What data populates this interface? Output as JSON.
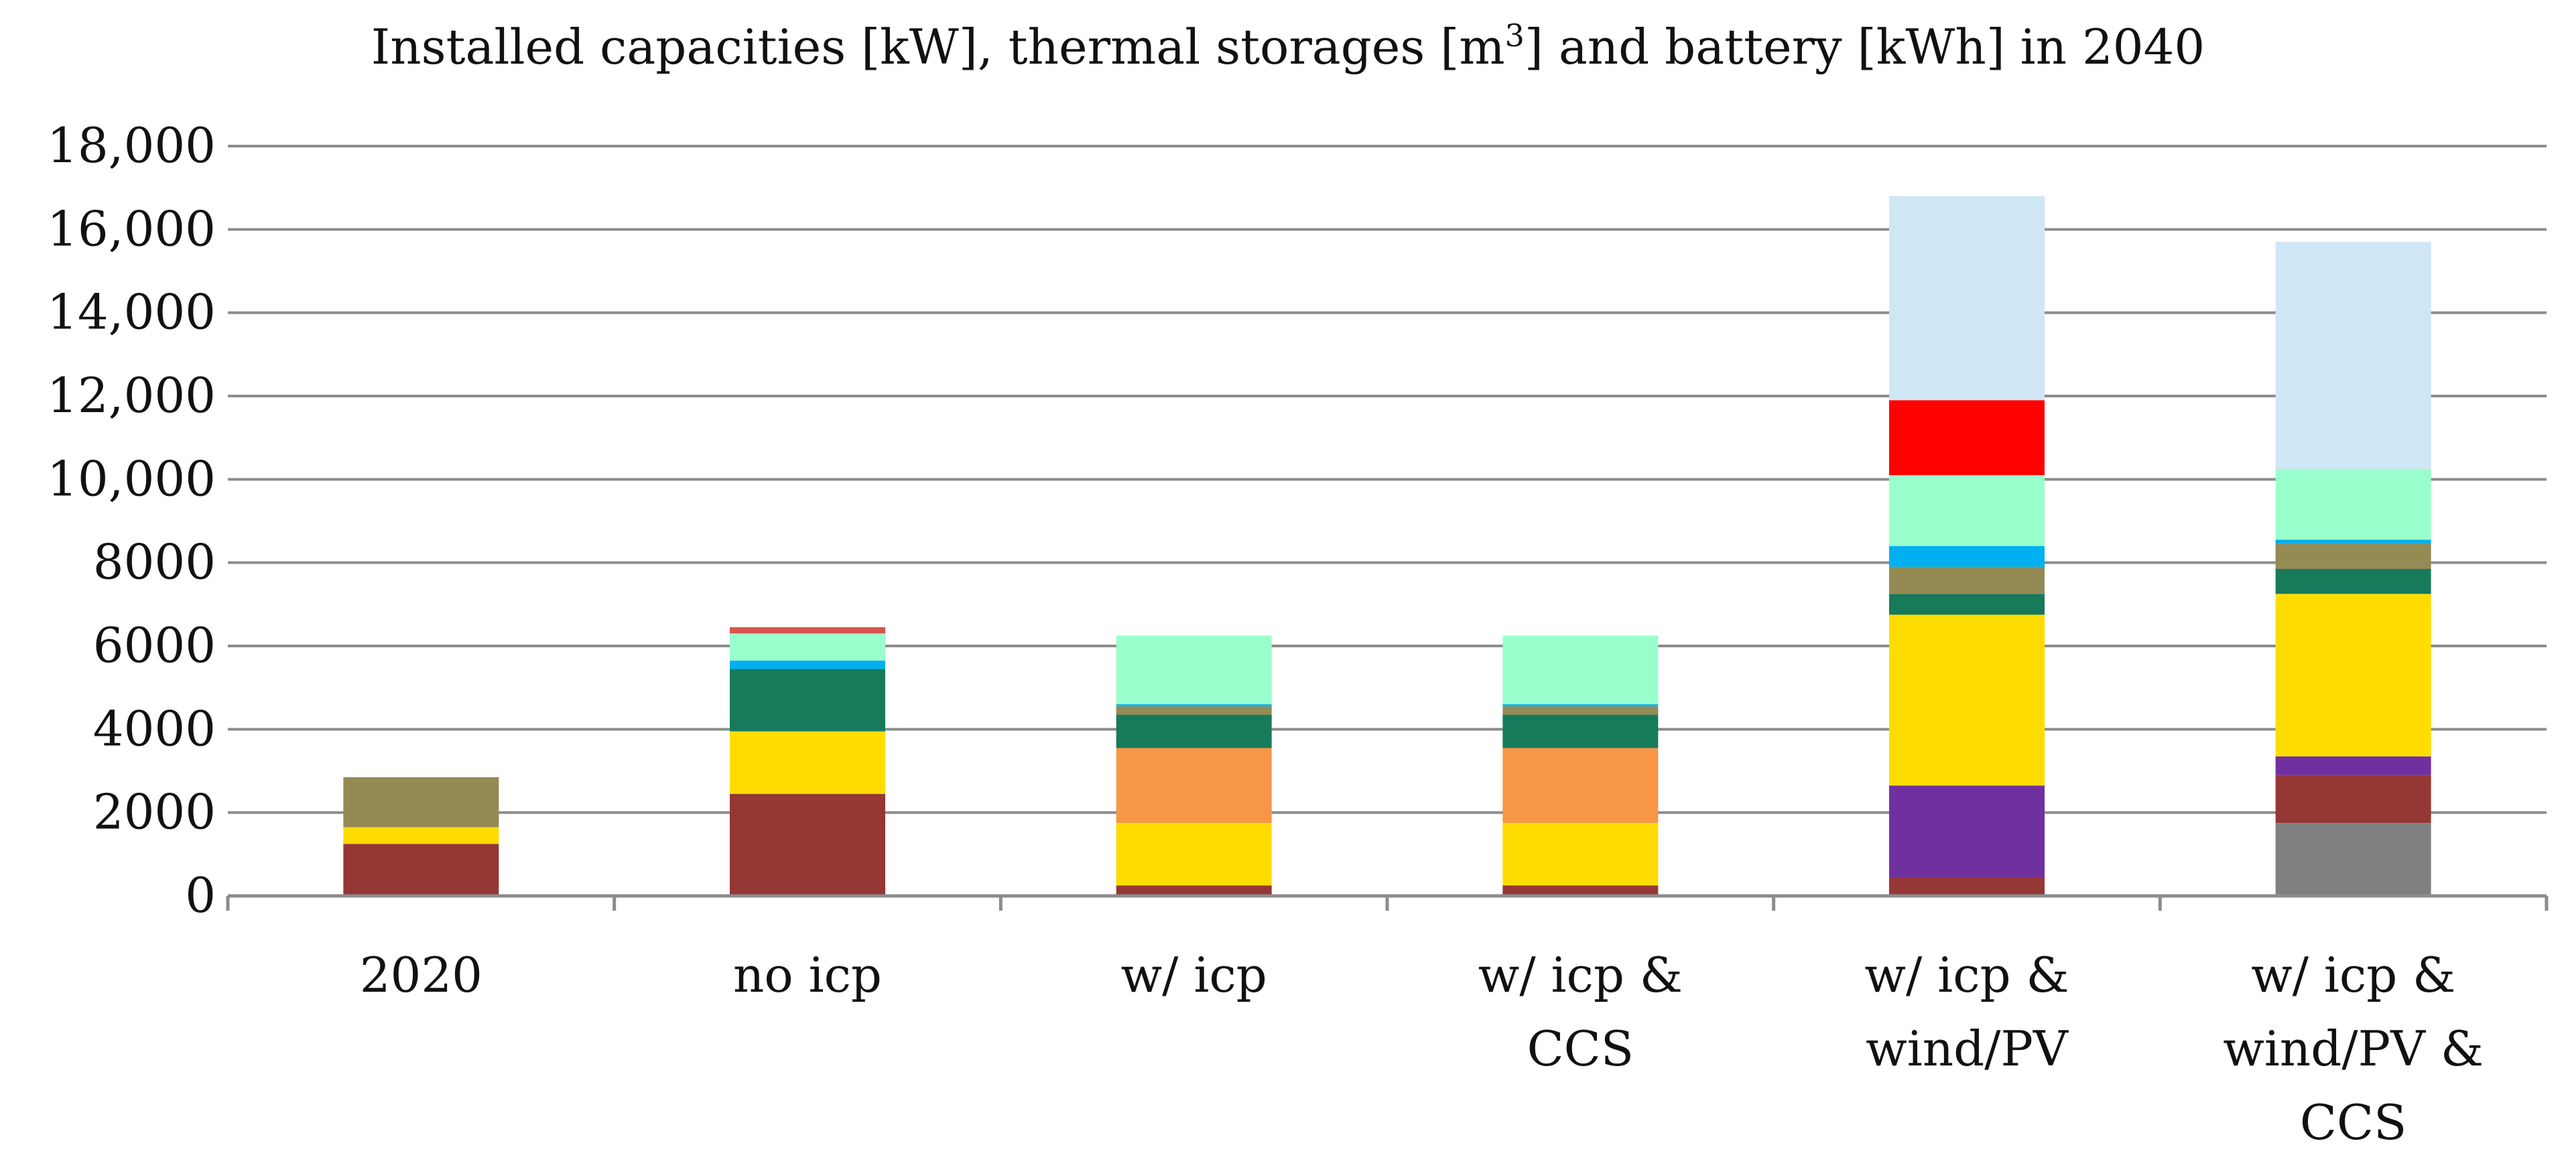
{
  "chart_data": {
    "type": "bar",
    "stacked": true,
    "title_main": "Installed capacities [kW], thermal storages [m",
    "title_sup": "3",
    "title_tail": "] and battery [kWh] in 2040",
    "xlabel": "",
    "ylabel": "",
    "ylim": [
      0,
      18000
    ],
    "yticks": [
      0,
      2000,
      4000,
      6000,
      8000,
      10000,
      12000,
      14000,
      16000,
      18000
    ],
    "ytick_labels": [
      "0",
      "2000",
      "4000",
      "6000",
      "8000",
      "10,000",
      "12,000",
      "14,000",
      "16,000",
      "18,000"
    ],
    "grid": true,
    "legend": "none",
    "categories": [
      [
        "2020"
      ],
      [
        "no icp"
      ],
      [
        "w/ icp"
      ],
      [
        "w/ icp &",
        "CCS"
      ],
      [
        "w/ icp &",
        "wind/PV"
      ],
      [
        "w/ icp &",
        "wind/PV &",
        "CCS"
      ]
    ],
    "series": [
      {
        "color": "#808080",
        "values": [
          0,
          0,
          0,
          0,
          0,
          1750
        ]
      },
      {
        "color": "#953735",
        "values": [
          1250,
          2450,
          250,
          250,
          450,
          1150
        ]
      },
      {
        "color": "#7030a0",
        "values": [
          0,
          0,
          0,
          0,
          2200,
          450
        ]
      },
      {
        "color": "#ffdc00",
        "values": [
          400,
          1500,
          1500,
          1500,
          4100,
          3900
        ]
      },
      {
        "color": "#f79646",
        "values": [
          0,
          0,
          1800,
          1800,
          0,
          0
        ]
      },
      {
        "color": "#177a5a",
        "values": [
          0,
          1500,
          800,
          800,
          500,
          600
        ]
      },
      {
        "color": "#948a54",
        "values": [
          1200,
          0,
          200,
          200,
          650,
          600
        ]
      },
      {
        "color": "#00b0f0",
        "values": [
          0,
          200,
          50,
          50,
          500,
          100
        ]
      },
      {
        "color": "#99ffcc",
        "values": [
          0,
          650,
          1650,
          1650,
          1700,
          1700
        ]
      },
      {
        "color": "#ff0000",
        "values": [
          0,
          0,
          0,
          0,
          1800,
          0
        ]
      },
      {
        "color": "#d9534f",
        "values": [
          0,
          150,
          0,
          0,
          0,
          0
        ]
      },
      {
        "color": "#cfe6f5",
        "values": [
          0,
          0,
          0,
          0,
          4900,
          5450
        ]
      }
    ]
  }
}
